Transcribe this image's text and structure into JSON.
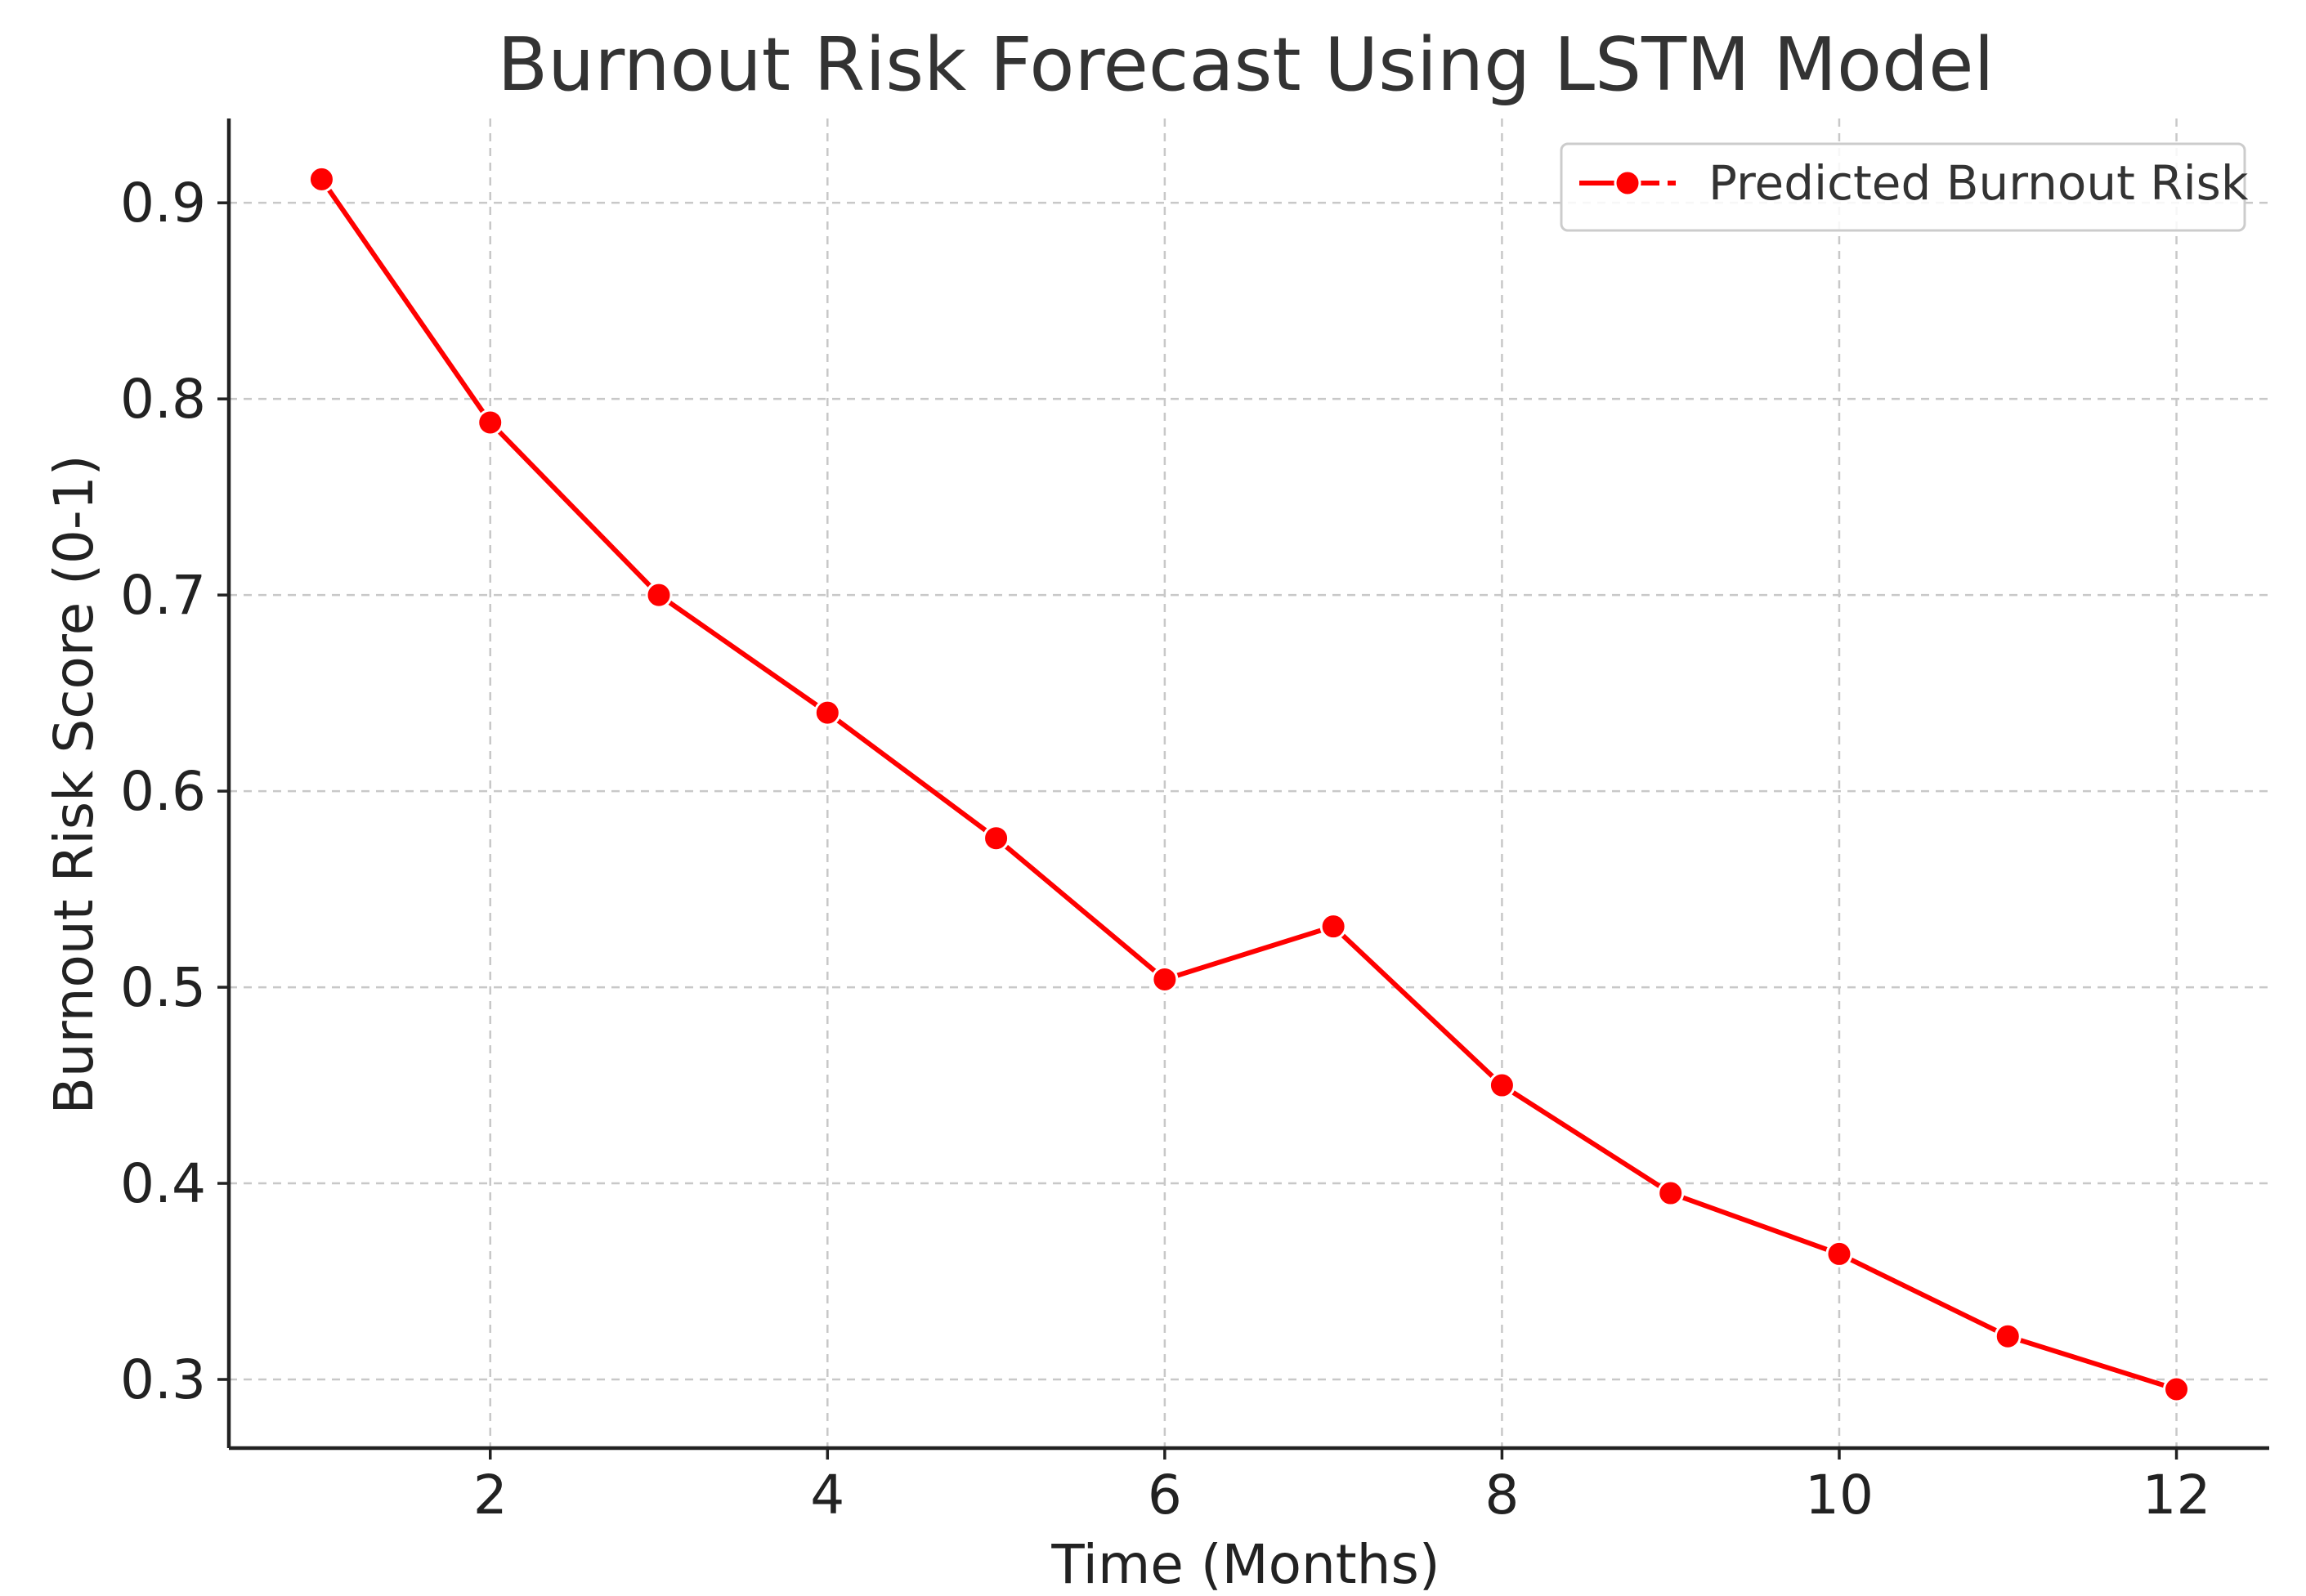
{
  "chart_data": {
    "type": "line",
    "title": "Burnout Risk Forecast Using LSTM Model",
    "xlabel": "Time (Months)",
    "ylabel": "Burnout Risk Score (0-1)",
    "x": [
      1,
      2,
      3,
      4,
      5,
      6,
      7,
      8,
      9,
      10,
      11,
      12
    ],
    "series": [
      {
        "name": "Predicted Burnout Risk",
        "color": "#ff0000",
        "marker": "circle",
        "values": [
          0.912,
          0.788,
          0.7,
          0.64,
          0.576,
          0.504,
          0.531,
          0.45,
          0.395,
          0.364,
          0.322,
          0.295
        ]
      }
    ],
    "xlim": [
      0.45,
      12.55
    ],
    "ylim": [
      0.265,
      0.943
    ],
    "xticks": [
      2,
      4,
      6,
      8,
      10,
      12
    ],
    "yticks": [
      0.3,
      0.4,
      0.5,
      0.6,
      0.7,
      0.8,
      0.9
    ],
    "xtick_labels": [
      "2",
      "4",
      "6",
      "8",
      "10",
      "12"
    ],
    "ytick_labels": [
      "0.3",
      "0.4",
      "0.5",
      "0.6",
      "0.7",
      "0.8",
      "0.9"
    ],
    "grid": true,
    "legend_position": "top-right"
  }
}
